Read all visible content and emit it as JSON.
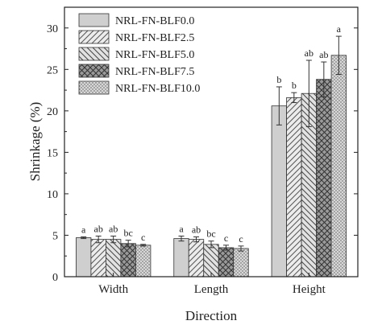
{
  "chart_data": {
    "type": "bar",
    "title": "",
    "xlabel": "Direction",
    "ylabel": "Shrinkage (%)",
    "ylim": [
      0,
      32.5
    ],
    "yticks": [
      0,
      5,
      10,
      15,
      20,
      25,
      30
    ],
    "categories": [
      "Width",
      "Length",
      "Height"
    ],
    "legend_position": "top-left",
    "series": [
      {
        "name": "NRL-FN-BLF0.0",
        "pattern": "light-grey",
        "values": [
          4.7,
          4.6,
          20.6
        ],
        "errors": [
          0.1,
          0.3,
          2.3
        ],
        "labels": [
          "a",
          "a",
          "b"
        ]
      },
      {
        "name": "NRL-FN-BLF2.5",
        "pattern": "diagonal-up",
        "values": [
          4.5,
          4.5,
          21.6
        ],
        "errors": [
          0.4,
          0.3,
          0.6
        ],
        "labels": [
          "ab",
          "ab",
          "b"
        ]
      },
      {
        "name": "NRL-FN-BLF5.0",
        "pattern": "diagonal-down",
        "values": [
          4.5,
          3.9,
          22.1
        ],
        "errors": [
          0.4,
          0.4,
          4.0
        ],
        "labels": [
          "ab",
          "bc",
          "ab"
        ]
      },
      {
        "name": "NRL-FN-BLF7.5",
        "pattern": "crosshatch",
        "values": [
          4.0,
          3.5,
          23.8
        ],
        "errors": [
          0.4,
          0.3,
          2.1
        ],
        "labels": [
          "bc",
          "c",
          "ab"
        ]
      },
      {
        "name": "NRL-FN-BLF10.0",
        "pattern": "dots",
        "values": [
          3.8,
          3.4,
          26.7
        ],
        "errors": [
          0.1,
          0.3,
          2.3
        ],
        "labels": [
          "c",
          "c",
          "a"
        ]
      }
    ]
  }
}
